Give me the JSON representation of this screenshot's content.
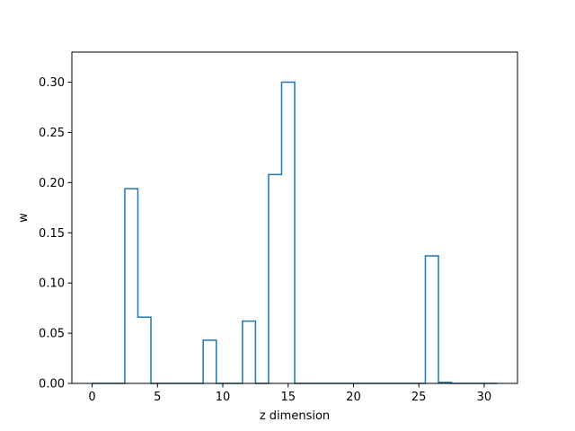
{
  "chart_data": {
    "type": "line",
    "drawstyle": "steps-mid",
    "title": "",
    "xlabel": "z dimension",
    "ylabel": "w",
    "xlim": [
      -1.55,
      32.55
    ],
    "ylim": [
      0,
      0.33
    ],
    "xticks": [
      0,
      5,
      10,
      15,
      20,
      25,
      30
    ],
    "xtick_labels": [
      "0",
      "5",
      "10",
      "15",
      "20",
      "25",
      "30"
    ],
    "yticks": [
      0,
      0.05,
      0.1,
      0.15,
      0.2,
      0.25,
      0.3
    ],
    "ytick_labels": [
      "0.00",
      "0.05",
      "0.10",
      "0.15",
      "0.20",
      "0.25",
      "0.30"
    ],
    "grid": false,
    "series": [
      {
        "color": "#1f77b4",
        "x": [
          0,
          1,
          2,
          3,
          4,
          5,
          6,
          7,
          8,
          9,
          10,
          11,
          12,
          13,
          14,
          15,
          16,
          17,
          18,
          19,
          20,
          21,
          22,
          23,
          24,
          25,
          26,
          27,
          28,
          29,
          30,
          31
        ],
        "y": [
          0,
          0,
          0,
          0.194,
          0.066,
          0,
          0,
          0,
          0,
          0.043,
          0,
          0,
          0.062,
          0,
          0.208,
          0.3,
          0,
          0,
          0,
          0,
          0,
          0,
          0,
          0,
          0,
          0,
          0.127,
          0.001,
          0,
          0,
          0,
          0
        ]
      }
    ]
  }
}
